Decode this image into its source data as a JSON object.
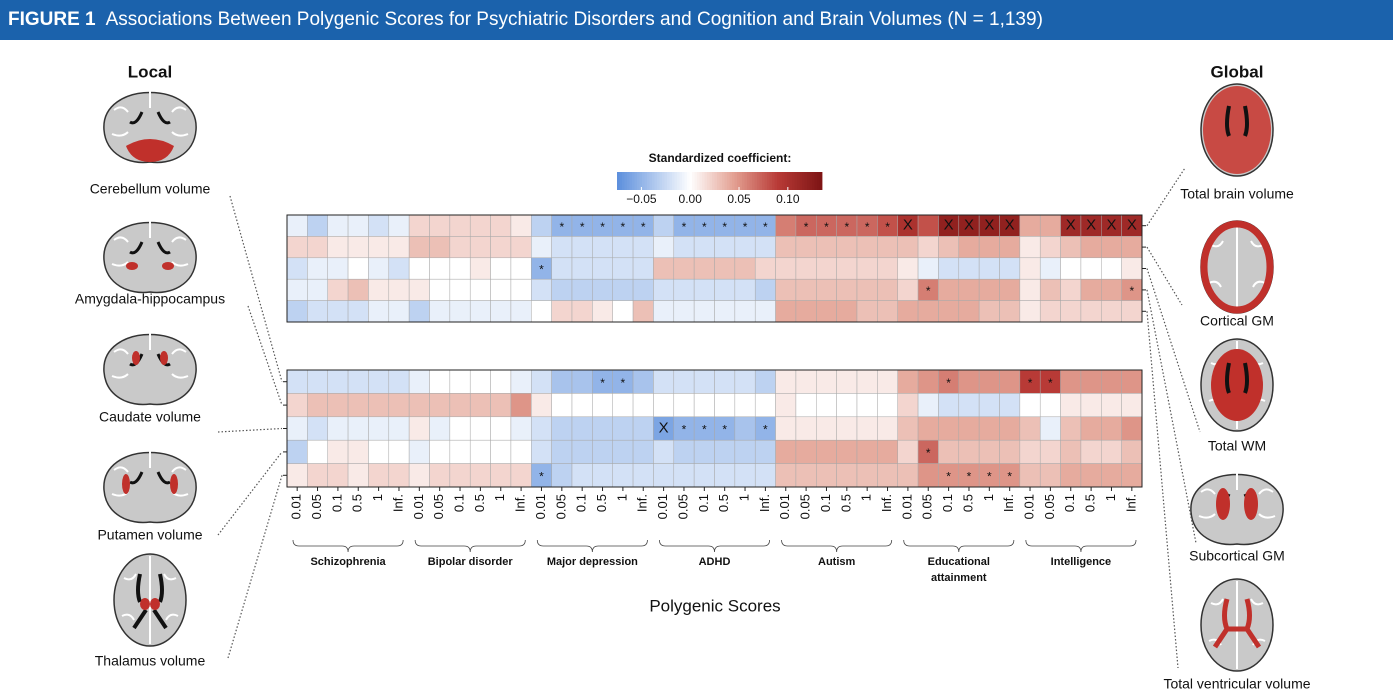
{
  "figure_label": "FIGURE 1",
  "figure_title": "Associations Between Polygenic Scores for Psychiatric Disorders and Cognition and Brain Volumes (N = 1,139)",
  "chart_data": [
    {
      "type": "heatmap",
      "panel_title": "Global",
      "rows": [
        "Total brain volume",
        "Cortical GM",
        "Total WM",
        "Subcortical GM",
        "Total ventricular volume"
      ],
      "values": [
        [
          -0.01,
          -0.03,
          -0.01,
          -0.01,
          -0.02,
          -0.01,
          0.02,
          0.02,
          0.02,
          0.02,
          0.02,
          0.01,
          -0.03,
          -0.05,
          -0.05,
          -0.05,
          -0.05,
          -0.05,
          -0.03,
          -0.05,
          -0.05,
          -0.05,
          -0.05,
          -0.05,
          0.06,
          0.07,
          0.07,
          0.07,
          0.07,
          0.08,
          0.1,
          0.08,
          0.12,
          0.12,
          0.12,
          0.12,
          0.04,
          0.04,
          0.11,
          0.11,
          0.11,
          0.11
        ],
        [
          0.02,
          0.02,
          0.01,
          0.01,
          0.01,
          0.01,
          0.03,
          0.03,
          0.02,
          0.02,
          0.02,
          0.02,
          -0.01,
          -0.02,
          -0.02,
          -0.02,
          -0.02,
          -0.02,
          -0.01,
          -0.02,
          -0.02,
          -0.02,
          -0.02,
          -0.02,
          0.03,
          0.03,
          0.03,
          0.03,
          0.03,
          0.03,
          0.03,
          0.02,
          0.03,
          0.04,
          0.04,
          0.04,
          0.01,
          0.02,
          0.03,
          0.04,
          0.04,
          0.04
        ],
        [
          -0.02,
          -0.01,
          -0.01,
          0.0,
          -0.01,
          -0.02,
          0.0,
          0.0,
          0.0,
          0.01,
          0.0,
          0.0,
          -0.05,
          -0.02,
          -0.02,
          -0.02,
          -0.02,
          -0.02,
          0.03,
          0.03,
          0.03,
          0.03,
          0.03,
          0.02,
          0.02,
          0.02,
          0.02,
          0.02,
          0.02,
          0.02,
          0.01,
          -0.01,
          -0.02,
          -0.02,
          -0.02,
          -0.02,
          0.01,
          -0.01,
          0.0,
          0.0,
          0.0,
          0.01
        ],
        [
          -0.01,
          -0.01,
          0.02,
          0.03,
          0.01,
          0.01,
          0.01,
          0.0,
          0.0,
          0.0,
          0.0,
          0.0,
          -0.02,
          -0.03,
          -0.03,
          -0.03,
          -0.03,
          -0.03,
          -0.02,
          -0.02,
          -0.02,
          -0.02,
          -0.02,
          -0.03,
          0.03,
          0.03,
          0.03,
          0.03,
          0.03,
          0.03,
          0.02,
          0.06,
          0.04,
          0.04,
          0.04,
          0.04,
          0.01,
          0.03,
          0.02,
          0.04,
          0.04,
          0.05
        ],
        [
          -0.03,
          -0.02,
          -0.02,
          -0.02,
          -0.01,
          -0.01,
          -0.03,
          -0.01,
          -0.01,
          -0.01,
          -0.01,
          -0.01,
          0.0,
          0.02,
          0.02,
          0.01,
          0.0,
          0.03,
          -0.01,
          -0.01,
          -0.01,
          -0.01,
          -0.01,
          -0.01,
          0.04,
          0.04,
          0.04,
          0.04,
          0.03,
          0.03,
          0.04,
          0.04,
          0.04,
          0.04,
          0.03,
          0.03,
          0.01,
          0.02,
          0.02,
          0.02,
          0.02,
          0.02
        ]
      ],
      "annotations": [
        {
          "row": 0,
          "col": 13,
          "text": "*"
        },
        {
          "row": 0,
          "col": 14,
          "text": "*"
        },
        {
          "row": 0,
          "col": 15,
          "text": "*"
        },
        {
          "row": 0,
          "col": 16,
          "text": "*"
        },
        {
          "row": 0,
          "col": 17,
          "text": "*"
        },
        {
          "row": 0,
          "col": 19,
          "text": "*"
        },
        {
          "row": 0,
          "col": 20,
          "text": "*"
        },
        {
          "row": 0,
          "col": 21,
          "text": "*"
        },
        {
          "row": 0,
          "col": 22,
          "text": "*"
        },
        {
          "row": 0,
          "col": 23,
          "text": "*"
        },
        {
          "row": 0,
          "col": 25,
          "text": "*"
        },
        {
          "row": 0,
          "col": 26,
          "text": "*"
        },
        {
          "row": 0,
          "col": 27,
          "text": "*"
        },
        {
          "row": 0,
          "col": 28,
          "text": "*"
        },
        {
          "row": 0,
          "col": 29,
          "text": "*"
        },
        {
          "row": 0,
          "col": 30,
          "text": "X"
        },
        {
          "row": 0,
          "col": 32,
          "text": "X"
        },
        {
          "row": 0,
          "col": 33,
          "text": "X"
        },
        {
          "row": 0,
          "col": 34,
          "text": "X"
        },
        {
          "row": 0,
          "col": 35,
          "text": "X"
        },
        {
          "row": 0,
          "col": 38,
          "text": "X"
        },
        {
          "row": 0,
          "col": 39,
          "text": "X"
        },
        {
          "row": 0,
          "col": 40,
          "text": "X"
        },
        {
          "row": 0,
          "col": 41,
          "text": "X"
        },
        {
          "row": 2,
          "col": 12,
          "text": "*"
        },
        {
          "row": 3,
          "col": 31,
          "text": "*"
        },
        {
          "row": 3,
          "col": 41,
          "text": "*"
        }
      ],
      "colorbar": {
        "title": "Standardized coefficient:",
        "lim": [
          -0.075,
          0.135
        ],
        "ticks": [
          {
            "value": -0.05,
            "label": "−0.05"
          },
          {
            "value": 0,
            "label": "0.00"
          },
          {
            "value": 0.05,
            "label": "0.05"
          },
          {
            "value": 0.1,
            "label": "0.10"
          }
        ],
        "colors": [
          "#5b8edc",
          "#ffffff",
          "#e3a092",
          "#b83a36",
          "#7d1414"
        ]
      }
    },
    {
      "type": "heatmap",
      "panel_title": "Local",
      "rows": [
        "Cerebellum volume",
        "Amygdala-hippocampus",
        "Caudate volume",
        "Putamen volume",
        "Thalamus volume"
      ],
      "groups": [
        "Schizophrenia",
        "Bipolar disorder",
        "Major depression",
        "ADHD",
        "Autism",
        "Educational attainment",
        "Intelligence"
      ],
      "categories": [
        "0.01",
        "0.05",
        "0.1",
        "0.5",
        "1",
        "Inf."
      ],
      "x_title": "Polygenic Scores",
      "values": [
        [
          -0.02,
          -0.02,
          -0.02,
          -0.02,
          -0.02,
          -0.02,
          -0.01,
          0.0,
          0.0,
          0.0,
          0.0,
          -0.01,
          -0.02,
          -0.04,
          -0.04,
          -0.05,
          -0.05,
          -0.04,
          -0.02,
          -0.02,
          -0.02,
          -0.02,
          -0.02,
          -0.03,
          0.01,
          0.01,
          0.01,
          0.01,
          0.01,
          0.01,
          0.04,
          0.05,
          0.06,
          0.05,
          0.05,
          0.05,
          0.09,
          0.09,
          0.05,
          0.05,
          0.05,
          0.05
        ],
        [
          0.02,
          0.03,
          0.03,
          0.03,
          0.03,
          0.03,
          0.03,
          0.03,
          0.03,
          0.03,
          0.03,
          0.05,
          0.01,
          0.0,
          0.0,
          0.0,
          0.0,
          0.0,
          0.0,
          0.0,
          0.0,
          0.0,
          0.0,
          0.0,
          0.01,
          0.0,
          0.0,
          0.0,
          0.0,
          0.0,
          0.02,
          -0.01,
          -0.02,
          -0.02,
          -0.02,
          -0.02,
          0.0,
          0.0,
          0.01,
          0.01,
          0.01,
          0.01
        ],
        [
          -0.01,
          -0.02,
          -0.01,
          -0.01,
          -0.01,
          -0.01,
          0.01,
          -0.01,
          0.0,
          0.0,
          0.0,
          -0.01,
          -0.02,
          -0.03,
          -0.03,
          -0.03,
          -0.03,
          -0.03,
          -0.06,
          -0.05,
          -0.05,
          -0.05,
          -0.04,
          -0.05,
          0.01,
          0.01,
          0.01,
          0.01,
          0.01,
          0.01,
          0.03,
          0.04,
          0.04,
          0.04,
          0.04,
          0.04,
          0.03,
          -0.01,
          0.03,
          0.04,
          0.04,
          0.05
        ],
        [
          -0.03,
          0.0,
          0.01,
          0.01,
          0.0,
          0.0,
          -0.01,
          0.0,
          0.0,
          0.0,
          0.0,
          0.0,
          -0.02,
          -0.03,
          -0.03,
          -0.03,
          -0.03,
          -0.03,
          -0.02,
          -0.03,
          -0.03,
          -0.03,
          -0.03,
          -0.03,
          0.04,
          0.04,
          0.04,
          0.04,
          0.04,
          0.04,
          0.02,
          0.07,
          0.03,
          0.03,
          0.03,
          0.03,
          0.02,
          0.02,
          0.03,
          0.02,
          0.02,
          0.03
        ],
        [
          0.01,
          0.02,
          0.02,
          0.01,
          0.02,
          0.02,
          0.01,
          0.02,
          0.02,
          0.02,
          0.02,
          0.02,
          -0.05,
          -0.03,
          -0.02,
          -0.02,
          -0.02,
          -0.02,
          -0.02,
          -0.02,
          -0.02,
          -0.02,
          -0.02,
          -0.02,
          0.03,
          0.03,
          0.03,
          0.03,
          0.03,
          0.03,
          0.03,
          0.05,
          0.05,
          0.05,
          0.05,
          0.05,
          0.03,
          0.03,
          0.04,
          0.04,
          0.04,
          0.04
        ]
      ],
      "annotations": [
        {
          "row": 0,
          "col": 15,
          "text": "*"
        },
        {
          "row": 0,
          "col": 16,
          "text": "*"
        },
        {
          "row": 0,
          "col": 32,
          "text": "*"
        },
        {
          "row": 0,
          "col": 36,
          "text": "*"
        },
        {
          "row": 0,
          "col": 37,
          "text": "*"
        },
        {
          "row": 2,
          "col": 18,
          "text": "X"
        },
        {
          "row": 2,
          "col": 19,
          "text": "*"
        },
        {
          "row": 2,
          "col": 20,
          "text": "*"
        },
        {
          "row": 2,
          "col": 21,
          "text": "*"
        },
        {
          "row": 2,
          "col": 23,
          "text": "*"
        },
        {
          "row": 3,
          "col": 31,
          "text": "*"
        },
        {
          "row": 4,
          "col": 12,
          "text": "*"
        },
        {
          "row": 4,
          "col": 32,
          "text": "*"
        },
        {
          "row": 4,
          "col": 33,
          "text": "*"
        },
        {
          "row": 4,
          "col": 34,
          "text": "*"
        },
        {
          "row": 4,
          "col": 35,
          "text": "*"
        }
      ]
    }
  ]
}
